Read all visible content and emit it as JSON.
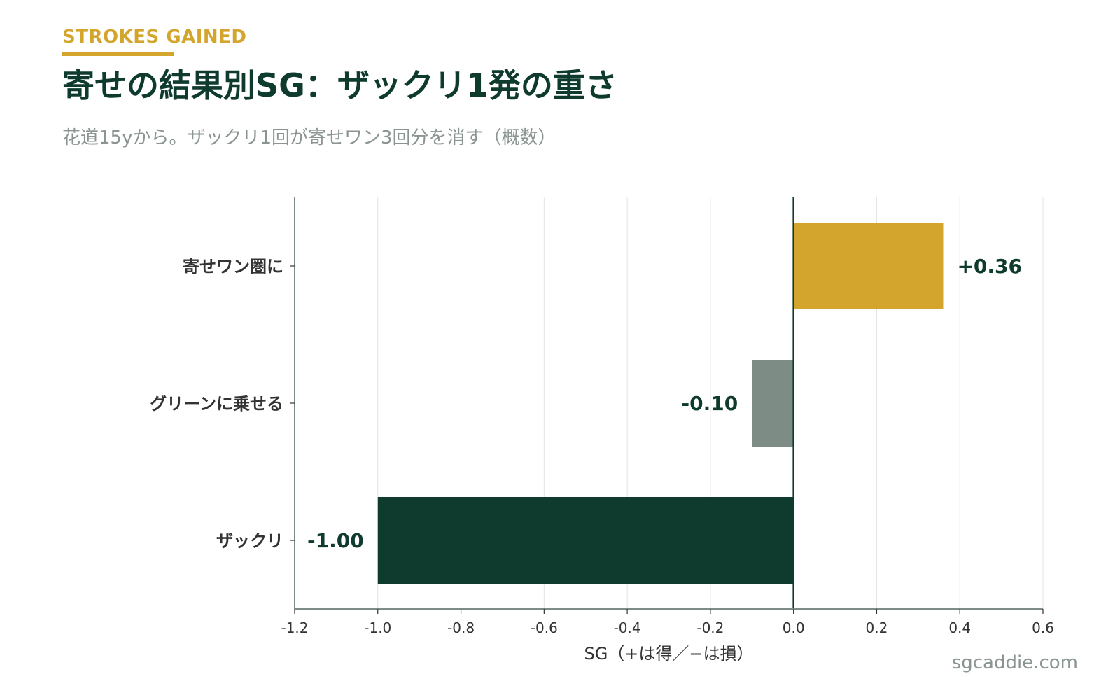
{
  "header": {
    "kicker": "STROKES GAINED",
    "title": "寄せの結果別SG：ザックリ1発の重さ",
    "subtitle": "花道15yから。ザックリ1回が寄せワン3回分を消す（概数）"
  },
  "footer": {
    "watermark": "sgcaddie.com"
  },
  "colors": {
    "accent": "#d4a52d",
    "dark_green": "#0f3b2e",
    "gray_green": "#7d8c84",
    "grid": "#e3e3e3",
    "axis": "#7d8c84"
  },
  "chart_data": {
    "type": "bar",
    "orientation": "horizontal",
    "categories": [
      "寄せワン圏に",
      "グリーンに乗せる",
      "ザックリ"
    ],
    "values": [
      0.36,
      -0.1,
      -1.0
    ],
    "value_labels": [
      "+0.36",
      "-0.10",
      "-1.00"
    ],
    "bar_colors": [
      "#d4a52d",
      "#7d8c84",
      "#0f3b2e"
    ],
    "xlabel": "SG（+は得／−は損）",
    "xlim": [
      -1.2,
      0.6
    ],
    "xticks": [
      -1.2,
      -1.0,
      -0.8,
      -0.6,
      -0.4,
      -0.2,
      0.0,
      0.2,
      0.4,
      0.6
    ],
    "xtick_labels": [
      "-1.2",
      "-1.0",
      "-0.8",
      "-0.6",
      "-0.4",
      "-0.2",
      "0.0",
      "0.2",
      "0.4",
      "0.6"
    ],
    "grid": "vertical",
    "zero_line": true
  }
}
